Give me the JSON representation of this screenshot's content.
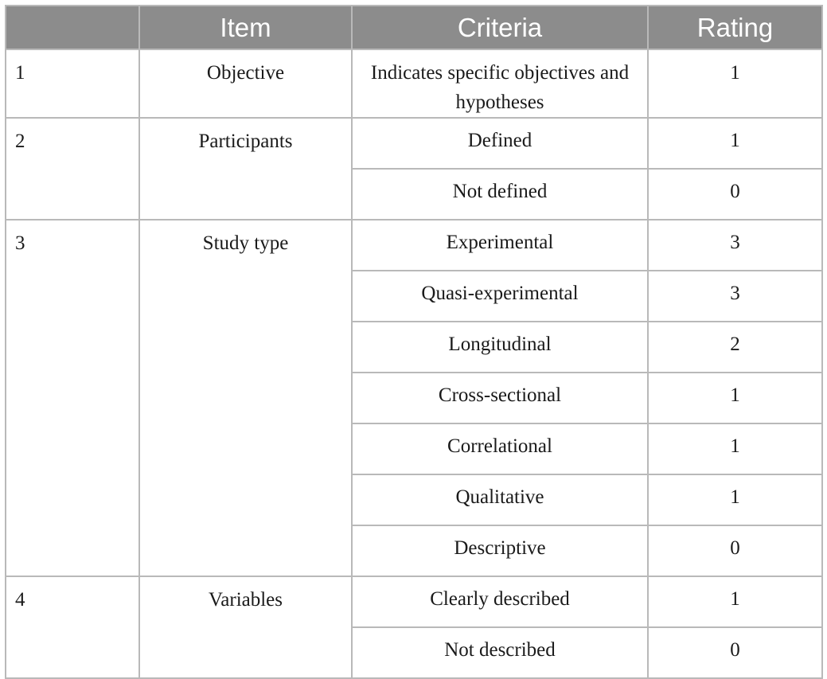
{
  "table": {
    "headers": {
      "number": "",
      "item": "Item",
      "criteria": "Criteria",
      "rating": "Rating"
    },
    "groups": [
      {
        "number": "1",
        "item": "Objective",
        "rows": [
          {
            "criteria": "Indicates specific objectives and hypotheses",
            "rating": "1"
          }
        ]
      },
      {
        "number": "2",
        "item": "Participants",
        "rows": [
          {
            "criteria": "Defined",
            "rating": "1"
          },
          {
            "criteria": "Not defined",
            "rating": "0"
          }
        ]
      },
      {
        "number": "3",
        "item": "Study type",
        "rows": [
          {
            "criteria": "Experimental",
            "rating": "3"
          },
          {
            "criteria": "Quasi-experimental",
            "rating": "3"
          },
          {
            "criteria": "Longitudinal",
            "rating": "2"
          },
          {
            "criteria": "Cross-sectional",
            "rating": "1"
          },
          {
            "criteria": "Correlational",
            "rating": "1"
          },
          {
            "criteria": "Qualitative",
            "rating": "1"
          },
          {
            "criteria": "Descriptive",
            "rating": "0"
          }
        ]
      },
      {
        "number": "4",
        "item": "Variables",
        "rows": [
          {
            "criteria": "Clearly described",
            "rating": "1"
          },
          {
            "criteria": "Not described",
            "rating": "0"
          }
        ]
      }
    ]
  }
}
